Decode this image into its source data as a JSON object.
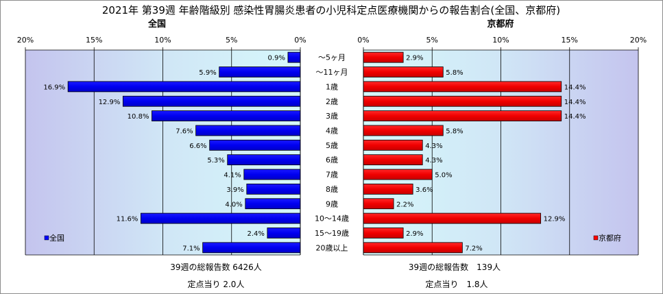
{
  "chart_data": {
    "type": "bar",
    "title": "2021年 第39週 年齢階級別 感染性胃腸炎患者の小児科定点医療機関からの報告割合(全国、京都府)",
    "categories": [
      "～5ヶ月",
      "～11ヶ月",
      "1歳",
      "2歳",
      "3歳",
      "4歳",
      "5歳",
      "6歳",
      "7歳",
      "8歳",
      "9歳",
      "10～14歳",
      "15～19歳",
      "20歳以上"
    ],
    "axis_ticks": [
      "20%",
      "15%",
      "10%",
      "5%",
      "0%"
    ],
    "axis_ticks_right": [
      "0%",
      "5%",
      "10%",
      "15%",
      "20%"
    ],
    "xlim": [
      0,
      20
    ],
    "legend_position": "bottom-left / bottom-right",
    "series": [
      {
        "name": "全国",
        "color": "#0000ff",
        "values": [
          0.9,
          5.9,
          16.9,
          12.9,
          10.8,
          7.6,
          6.6,
          5.3,
          4.1,
          3.9,
          4.0,
          11.6,
          2.4,
          7.1
        ],
        "labels": [
          "0.9%",
          "5.9%",
          "16.9%",
          "12.9%",
          "10.8%",
          "7.6%",
          "6.6%",
          "5.3%",
          "4.1%",
          "3.9%",
          "4.0%",
          "11.6%",
          "2.4%",
          "7.1%"
        ],
        "legend": "全国",
        "summary_total": "39週の総報告数 6426人",
        "summary_per_point": "定点当り 2.0人"
      },
      {
        "name": "京都府",
        "color": "#ff0000",
        "values": [
          2.9,
          5.8,
          14.4,
          14.4,
          14.4,
          5.8,
          4.3,
          4.3,
          5.0,
          3.6,
          2.2,
          12.9,
          2.9,
          7.2
        ],
        "labels": [
          "2.9%",
          "5.8%",
          "14.4%",
          "14.4%",
          "14.4%",
          "5.8%",
          "4.3%",
          "4.3%",
          "5.0%",
          "3.6%",
          "2.2%",
          "12.9%",
          "2.9%",
          "7.2%"
        ],
        "legend": "京都府",
        "summary_total": "39週の総報告数　139人",
        "summary_per_point": "定点当り　1.8人"
      }
    ]
  }
}
